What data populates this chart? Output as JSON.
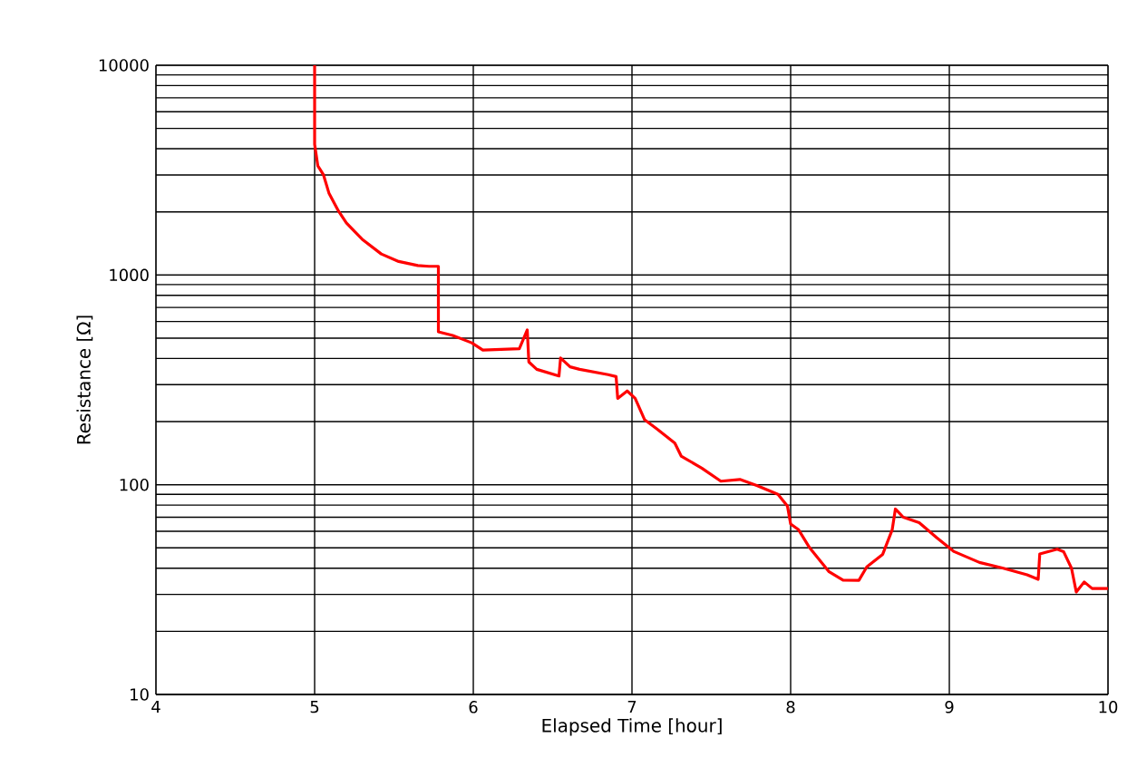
{
  "chart_data": {
    "type": "line",
    "xlabel": "Elapsed Time [hour]",
    "ylabel": "Resistance [Ω]",
    "log": "y",
    "grid": true,
    "xlim": [
      4,
      10
    ],
    "ylim": [
      10,
      10000
    ],
    "xticks": [
      4,
      5,
      6,
      7,
      8,
      9,
      10
    ],
    "yticks": [
      10,
      100,
      1000,
      10000
    ],
    "series": [
      {
        "color": "#ff0000",
        "x": [
          5.0,
          5.0,
          5.02,
          5.056,
          5.09,
          5.15,
          5.2,
          5.3,
          5.42,
          5.53,
          5.65,
          5.72,
          5.78,
          5.78,
          5.87,
          5.99,
          6.06,
          6.29,
          6.34,
          6.35,
          6.4,
          6.54,
          6.55,
          6.61,
          6.67,
          6.85,
          6.9,
          6.91,
          6.97,
          7.02,
          7.08,
          7.16,
          7.27,
          7.31,
          7.44,
          7.56,
          7.68,
          7.79,
          7.92,
          7.98,
          8.0,
          8.05,
          8.12,
          8.24,
          8.33,
          8.43,
          8.48,
          8.58,
          8.64,
          8.66,
          8.71,
          8.81,
          8.92,
          9.03,
          9.19,
          9.34,
          9.49,
          9.56,
          9.57,
          9.68,
          9.72,
          9.77,
          9.8,
          9.85,
          9.9,
          10.0
        ],
        "values": [
          10000,
          4200,
          3320,
          3000,
          2460,
          2020,
          1770,
          1480,
          1260,
          1160,
          1110,
          1100,
          1100,
          536,
          515,
          475,
          439,
          445,
          547,
          385,
          355,
          330,
          402,
          365,
          355,
          335,
          328,
          258,
          280,
          258,
          204,
          184,
          158,
          137,
          120,
          104,
          106,
          99,
          90,
          79,
          65,
          61,
          50,
          38.6,
          35.1,
          35,
          40.6,
          46.6,
          61,
          76.6,
          70,
          66,
          56,
          48,
          42.6,
          40,
          37.2,
          35.4,
          46.8,
          49.3,
          48,
          40,
          30.8,
          34.4,
          32,
          32
        ]
      }
    ]
  }
}
